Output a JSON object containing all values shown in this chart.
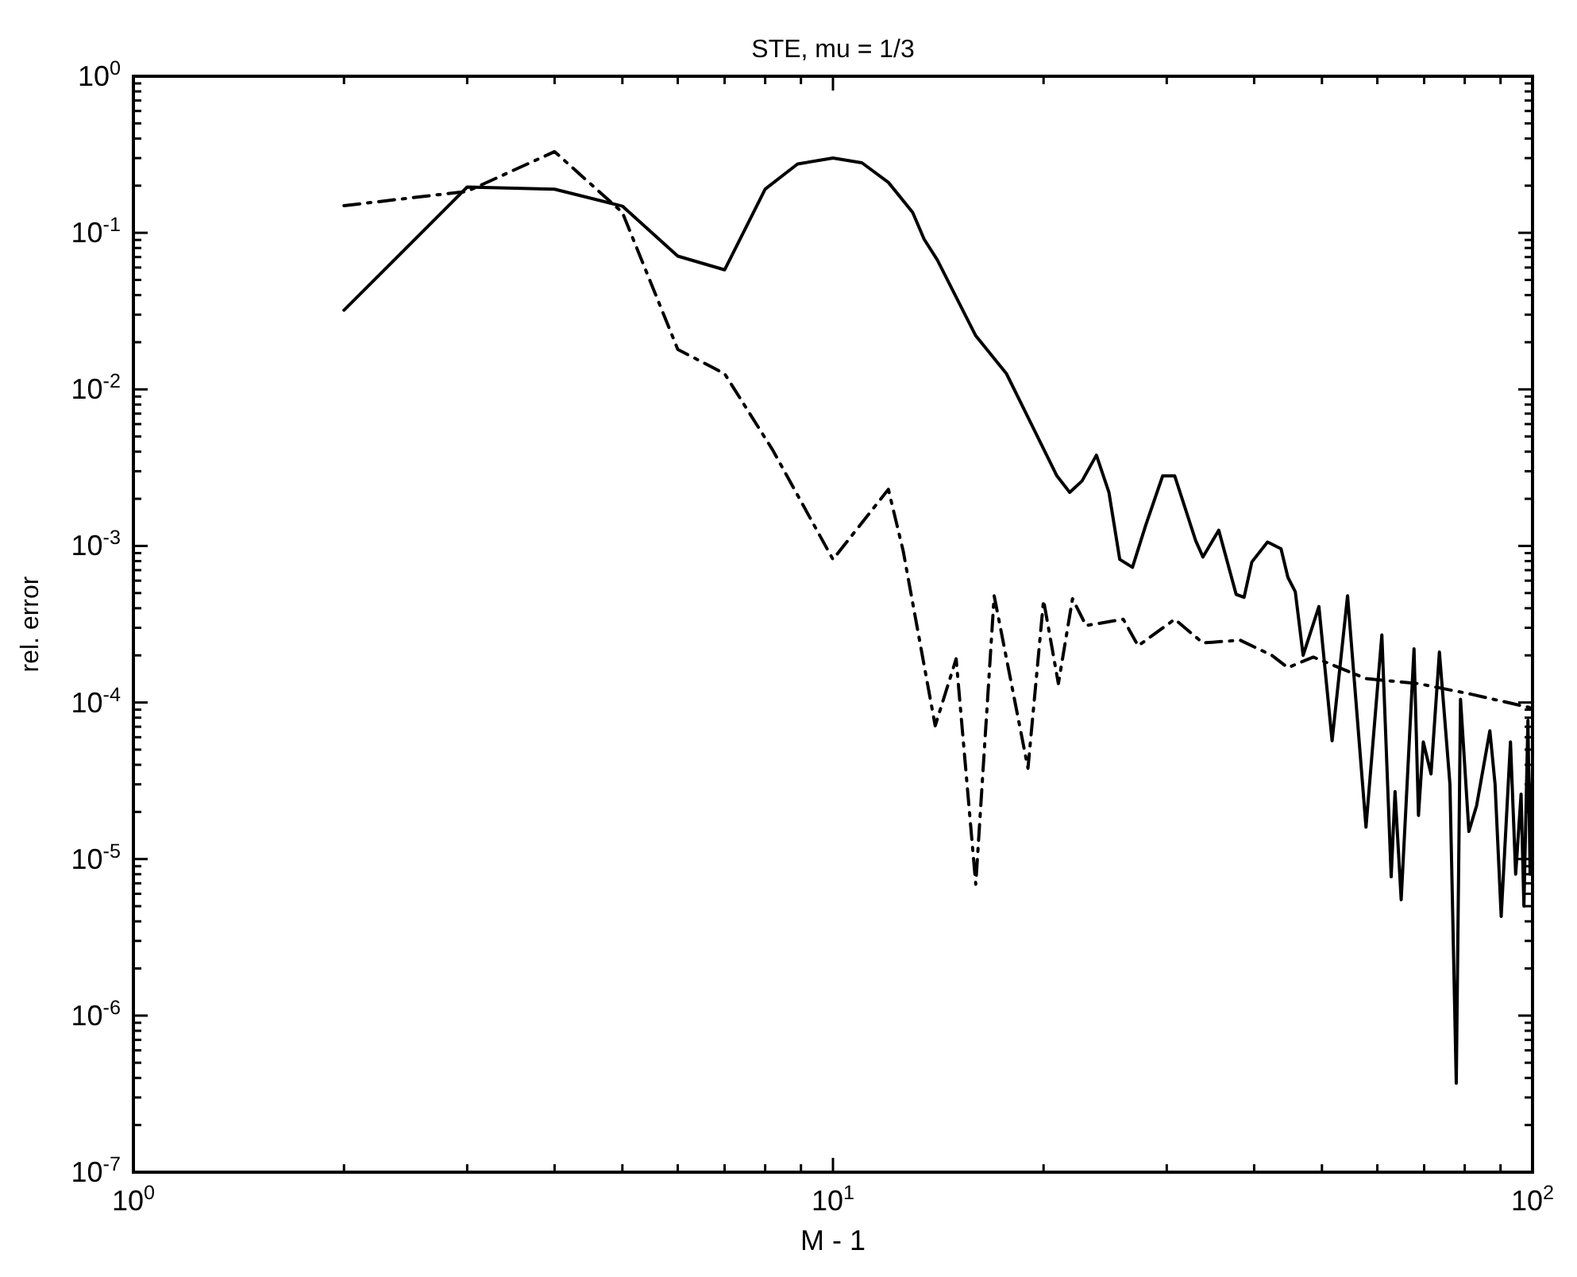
{
  "chart_data": {
    "type": "line",
    "title": "STE, mu = 1/3",
    "xlabel": "M - 1",
    "ylabel": "rel. error",
    "log": "xy",
    "grid": false,
    "marker": "none",
    "xlim": [
      1,
      100
    ],
    "ylim": [
      1e-07,
      1
    ],
    "xticks": [
      {
        "value": 1,
        "label": "10$^{0}$"
      },
      {
        "value": 2,
        "label": null
      },
      {
        "value": 3,
        "label": null
      },
      {
        "value": 4,
        "label": null
      },
      {
        "value": 5,
        "label": null
      },
      {
        "value": 6,
        "label": null
      },
      {
        "value": 7,
        "label": null
      },
      {
        "value": 8,
        "label": null
      },
      {
        "value": 9,
        "label": null
      },
      {
        "value": 10,
        "label": "10$^{1}$"
      },
      {
        "value": 20,
        "label": null
      },
      {
        "value": 30,
        "label": null
      },
      {
        "value": 40,
        "label": null
      },
      {
        "value": 50,
        "label": null
      },
      {
        "value": 60,
        "label": null
      },
      {
        "value": 70,
        "label": null
      },
      {
        "value": 80,
        "label": null
      },
      {
        "value": 90,
        "label": null
      },
      {
        "value": 100,
        "label": "10$^{2}$"
      }
    ],
    "yticks": [
      {
        "value": 1e-07,
        "label": "10$^{-7}$"
      },
      {
        "value": 1e-06,
        "label": "10$^{-6}$"
      },
      {
        "value": 1e-05,
        "label": "10$^{-5}$"
      },
      {
        "value": 0.0001,
        "label": "10$^{-4}$"
      },
      {
        "value": 0.001,
        "label": "10$^{-3}$"
      },
      {
        "value": 0.01,
        "label": "10$^{-2}$"
      },
      {
        "value": 0.1,
        "label": "10$^{-1}$"
      },
      {
        "value": 1,
        "label": "10$^{0}$"
      },
      {
        "value": 2e-07,
        "label": null
      },
      {
        "value": 3e-07,
        "label": null
      },
      {
        "value": 4e-07,
        "label": null
      },
      {
        "value": 5e-07,
        "label": null
      },
      {
        "value": 6e-07,
        "label": null
      },
      {
        "value": 7e-07,
        "label": null
      },
      {
        "value": 8e-07,
        "label": null
      },
      {
        "value": 9e-07,
        "label": null
      },
      {
        "value": 2e-06,
        "label": null
      },
      {
        "value": 3e-06,
        "label": null
      },
      {
        "value": 4e-06,
        "label": null
      },
      {
        "value": 5e-06,
        "label": null
      },
      {
        "value": 6e-06,
        "label": null
      },
      {
        "value": 7e-06,
        "label": null
      },
      {
        "value": 8e-06,
        "label": null
      },
      {
        "value": 9e-06,
        "label": null
      },
      {
        "value": 2e-05,
        "label": null
      },
      {
        "value": 3e-05,
        "label": null
      },
      {
        "value": 4e-05,
        "label": null
      },
      {
        "value": 5e-05,
        "label": null
      },
      {
        "value": 6e-05,
        "label": null
      },
      {
        "value": 7e-05,
        "label": null
      },
      {
        "value": 8e-05,
        "label": null
      },
      {
        "value": 9e-05,
        "label": null
      },
      {
        "value": 0.0002,
        "label": null
      },
      {
        "value": 0.0003,
        "label": null
      },
      {
        "value": 0.0004,
        "label": null
      },
      {
        "value": 0.0005,
        "label": null
      },
      {
        "value": 0.0006,
        "label": null
      },
      {
        "value": 0.0007,
        "label": null
      },
      {
        "value": 0.0008,
        "label": null
      },
      {
        "value": 0.0009,
        "label": null
      },
      {
        "value": 0.002,
        "label": null
      },
      {
        "value": 0.003,
        "label": null
      },
      {
        "value": 0.004,
        "label": null
      },
      {
        "value": 0.005,
        "label": null
      },
      {
        "value": 0.006,
        "label": null
      },
      {
        "value": 0.007,
        "label": null
      },
      {
        "value": 0.008,
        "label": null
      },
      {
        "value": 0.009,
        "label": null
      },
      {
        "value": 0.02,
        "label": null
      },
      {
        "value": 0.03,
        "label": null
      },
      {
        "value": 0.04,
        "label": null
      },
      {
        "value": 0.05,
        "label": null
      },
      {
        "value": 0.06,
        "label": null
      },
      {
        "value": 0.07,
        "label": null
      },
      {
        "value": 0.08,
        "label": null
      },
      {
        "value": 0.09,
        "label": null
      },
      {
        "value": 0.2,
        "label": null
      },
      {
        "value": 0.3,
        "label": null
      },
      {
        "value": 0.4,
        "label": null
      },
      {
        "value": 0.5,
        "label": null
      },
      {
        "value": 0.6,
        "label": null
      },
      {
        "value": 0.7,
        "label": null
      },
      {
        "value": 0.8,
        "label": null
      },
      {
        "value": 0.9,
        "label": null
      }
    ],
    "series": [
      {
        "color": "#000000",
        "line_style": "solid",
        "x": [
          2,
          3,
          4,
          5,
          6,
          7,
          8,
          8.9,
          10,
          11,
          12,
          13,
          13.5,
          14.1,
          16,
          17.7,
          20.9,
          21.8,
          22.7,
          23.8,
          24.8,
          25.7,
          26.8,
          28,
          29.6,
          30.8,
          33,
          33.8,
          35.6,
          37.7,
          38.7,
          39.7,
          41.8,
          43.7,
          44.7,
          45.8,
          47,
          49.5,
          51.7,
          54.4,
          57.8,
          60.9,
          62.8,
          63.6,
          64.9,
          67.7,
          68.7,
          69.8,
          71.6,
          73.6,
          76.2,
          77.8,
          78.9,
          81.1,
          83.2,
          86.9,
          88.4,
          90.2,
          93,
          94.6,
          96.3,
          97.2,
          98.5,
          99.2,
          100
        ],
        "values": [
          0.032,
          0.196,
          0.19,
          0.148,
          0.071,
          0.058,
          0.19,
          0.275,
          0.3,
          0.28,
          0.21,
          0.135,
          0.091,
          0.067,
          0.022,
          0.0126,
          0.0028,
          0.0022,
          0.0026,
          0.0038,
          0.0022,
          0.00082,
          0.00073,
          0.00136,
          0.0028,
          0.0028,
          0.00108,
          0.00085,
          0.00126,
          0.00049,
          0.00047,
          0.00079,
          0.00106,
          0.00096,
          0.00063,
          0.00051,
          0.0002,
          0.00041,
          5.7e-05,
          0.00048,
          1.6e-05,
          0.00027,
          7.7e-06,
          2.7e-05,
          5.5e-06,
          0.00022,
          1.9e-05,
          5.6e-05,
          3.5e-05,
          0.00021,
          3e-05,
          3.7e-07,
          0.000105,
          1.5e-05,
          2.2e-05,
          6.6e-05,
          3e-05,
          4.3e-06,
          5.6e-05,
          8e-06,
          2.6e-05,
          5e-06,
          7.7e-05,
          8e-06,
          4e-05
        ]
      },
      {
        "color": "#000000",
        "line_style": "dashdot",
        "x": [
          2,
          3,
          4,
          5,
          6,
          7,
          8.2,
          10,
          12,
          12.6,
          14,
          15,
          16,
          17,
          19,
          20,
          21,
          22,
          23,
          26,
          27.3,
          30.8,
          33.8,
          38.2,
          42.4,
          44.7,
          48.6,
          57.8,
          68.7,
          81.7,
          98.9,
          100
        ],
        "values": [
          0.149,
          0.184,
          0.33,
          0.135,
          0.018,
          0.0126,
          0.0041,
          0.00082,
          0.0023,
          0.00093,
          7.1e-05,
          0.00019,
          6.9e-06,
          0.00048,
          3.8e-05,
          0.00045,
          0.000132,
          0.00046,
          0.00031,
          0.00034,
          0.00023,
          0.00034,
          0.00024,
          0.00025,
          0.0002,
          0.000167,
          0.000195,
          0.000142,
          0.000132,
          0.000113,
          9.3e-05,
          9e-05
        ]
      }
    ]
  }
}
